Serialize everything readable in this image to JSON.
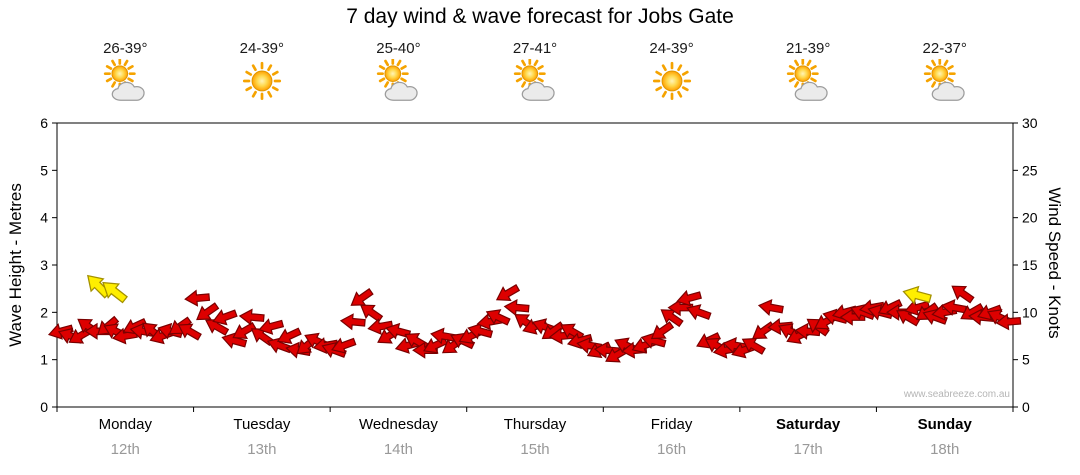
{
  "title": "7 day wind & wave forecast for Jobs Gate",
  "watermark": "www.seabreeze.com.au",
  "axes": {
    "left_label": "Wave Height - Metres",
    "right_label": "Wind Speed - Knots",
    "left_ticks": [
      0,
      1,
      2,
      3,
      4,
      5,
      6
    ],
    "right_ticks": [
      0,
      5,
      10,
      15,
      20,
      25,
      30
    ],
    "left_range": [
      0,
      6
    ],
    "right_range": [
      0,
      30
    ]
  },
  "days": [
    {
      "name": "Monday",
      "date": "12th",
      "temp": "26-39°",
      "icon": "sun-cloud",
      "bold": false
    },
    {
      "name": "Tuesday",
      "date": "13th",
      "temp": "24-39°",
      "icon": "sun",
      "bold": false
    },
    {
      "name": "Wednesday",
      "date": "14th",
      "temp": "25-40°",
      "icon": "sun-cloud",
      "bold": false
    },
    {
      "name": "Thursday",
      "date": "15th",
      "temp": "27-41°",
      "icon": "sun-cloud",
      "bold": false
    },
    {
      "name": "Friday",
      "date": "16th",
      "temp": "24-39°",
      "icon": "sun",
      "bold": false
    },
    {
      "name": "Saturday",
      "date": "17th",
      "temp": "21-39°",
      "icon": "sun-cloud",
      "bold": true
    },
    {
      "name": "Sunday",
      "date": "18th",
      "temp": "22-37°",
      "icon": "sun-cloud",
      "bold": true
    }
  ],
  "chart_data": {
    "type": "scatter",
    "marker": "wind-arrow",
    "title": "7 day wind & wave forecast for Jobs Gate",
    "x_range_days": [
      0,
      7
    ],
    "y_left": {
      "label": "Wave Height - Metres",
      "range": [
        0,
        6
      ]
    },
    "y_right": {
      "label": "Wind Speed - Knots",
      "range": [
        0,
        30
      ]
    },
    "arrow_color": "#dd0000",
    "arrow_outline": "#7a0000",
    "gust_color": "#ffee00",
    "gust_outline": "#a39000",
    "format": "each arrow = [day_fraction_t (0-7), wind_speed_knots, direction_deg_clockwise_from_east]",
    "arrows": [
      [
        0.03,
        8,
        165
      ],
      [
        0.1,
        7.5,
        200
      ],
      [
        0.17,
        7.5,
        150
      ],
      [
        0.23,
        8.5,
        215
      ],
      [
        0.3,
        8,
        180
      ],
      [
        0.37,
        8.5,
        140
      ],
      [
        0.43,
        8,
        205
      ],
      [
        0.5,
        7.5,
        170
      ],
      [
        0.57,
        8.5,
        155
      ],
      [
        0.63,
        8,
        190
      ],
      [
        0.7,
        8,
        220
      ],
      [
        0.77,
        7.5,
        160
      ],
      [
        0.83,
        8,
        195
      ],
      [
        0.9,
        8.5,
        145
      ],
      [
        0.97,
        8,
        210
      ],
      [
        1.03,
        11.5,
        175
      ],
      [
        1.1,
        10,
        145
      ],
      [
        1.17,
        8.5,
        210
      ],
      [
        1.23,
        9.5,
        160
      ],
      [
        1.3,
        7,
        195
      ],
      [
        1.37,
        8,
        150
      ],
      [
        1.43,
        9.5,
        185
      ],
      [
        1.5,
        7.5,
        215
      ],
      [
        1.57,
        8.5,
        165
      ],
      [
        1.63,
        6.5,
        200
      ],
      [
        1.7,
        7.5,
        155
      ],
      [
        1.77,
        6,
        190
      ],
      [
        1.83,
        6.5,
        140
      ],
      [
        1.9,
        7,
        205
      ],
      [
        1.97,
        6.5,
        170
      ],
      [
        2.03,
        6,
        200
      ],
      [
        2.1,
        6.5,
        160
      ],
      [
        2.17,
        9,
        185
      ],
      [
        2.23,
        11.5,
        145
      ],
      [
        2.3,
        10,
        215
      ],
      [
        2.37,
        8.5,
        170
      ],
      [
        2.43,
        7.5,
        150
      ],
      [
        2.5,
        8,
        195
      ],
      [
        2.57,
        6.5,
        165
      ],
      [
        2.63,
        7,
        210
      ],
      [
        2.7,
        6,
        180
      ],
      [
        2.77,
        6.5,
        155
      ],
      [
        2.83,
        7.5,
        190
      ],
      [
        2.9,
        6.5,
        145
      ],
      [
        2.97,
        7,
        205
      ],
      [
        3.03,
        7.5,
        155
      ],
      [
        3.1,
        8,
        195
      ],
      [
        3.17,
        9,
        170
      ],
      [
        3.23,
        9.5,
        205
      ],
      [
        3.3,
        12,
        150
      ],
      [
        3.37,
        10.5,
        185
      ],
      [
        3.43,
        9,
        215
      ],
      [
        3.5,
        8.5,
        160
      ],
      [
        3.57,
        8.5,
        200
      ],
      [
        3.63,
        8,
        145
      ],
      [
        3.7,
        7.5,
        175
      ],
      [
        3.77,
        8,
        210
      ],
      [
        3.83,
        7,
        165
      ],
      [
        3.9,
        6.5,
        190
      ],
      [
        3.97,
        6,
        155
      ],
      [
        4.03,
        6,
        185
      ],
      [
        4.1,
        5.5,
        150
      ],
      [
        4.17,
        6.5,
        205
      ],
      [
        4.23,
        6,
        175
      ],
      [
        4.3,
        6.5,
        160
      ],
      [
        4.37,
        7,
        195
      ],
      [
        4.43,
        8,
        145
      ],
      [
        4.5,
        9.5,
        215
      ],
      [
        4.57,
        10.5,
        180
      ],
      [
        4.63,
        11.5,
        165
      ],
      [
        4.7,
        10,
        200
      ],
      [
        4.77,
        7,
        155
      ],
      [
        4.83,
        6.5,
        210
      ],
      [
        4.9,
        6,
        170
      ],
      [
        4.97,
        6.5,
        190
      ],
      [
        5.03,
        6,
        160
      ],
      [
        5.1,
        6.5,
        210
      ],
      [
        5.17,
        8,
        145
      ],
      [
        5.23,
        10.5,
        190
      ],
      [
        5.3,
        8.5,
        175
      ],
      [
        5.37,
        8,
        205
      ],
      [
        5.43,
        7.5,
        155
      ],
      [
        5.5,
        8,
        185
      ],
      [
        5.57,
        8.5,
        215
      ],
      [
        5.63,
        9,
        150
      ],
      [
        5.7,
        9.5,
        195
      ],
      [
        5.77,
        10,
        165
      ],
      [
        5.83,
        9.5,
        180
      ],
      [
        5.9,
        10,
        200
      ],
      [
        5.97,
        10.5,
        170
      ],
      [
        6.03,
        10,
        195
      ],
      [
        6.1,
        10.5,
        155
      ],
      [
        6.17,
        10,
        180
      ],
      [
        6.23,
        9.5,
        210
      ],
      [
        6.3,
        10.5,
        165
      ],
      [
        6.37,
        10,
        145
      ],
      [
        6.43,
        9.5,
        200
      ],
      [
        6.5,
        10,
        170
      ],
      [
        6.57,
        10.5,
        190
      ],
      [
        6.63,
        12,
        215
      ],
      [
        6.7,
        10,
        150
      ],
      [
        6.77,
        9.5,
        185
      ],
      [
        6.83,
        10,
        160
      ],
      [
        6.9,
        9.5,
        205
      ],
      [
        6.97,
        9,
        175
      ]
    ],
    "gust_arrows": [
      [
        0.3,
        12.8,
        225
      ],
      [
        0.42,
        12.2,
        218
      ],
      [
        6.3,
        11.8,
        195
      ]
    ]
  }
}
